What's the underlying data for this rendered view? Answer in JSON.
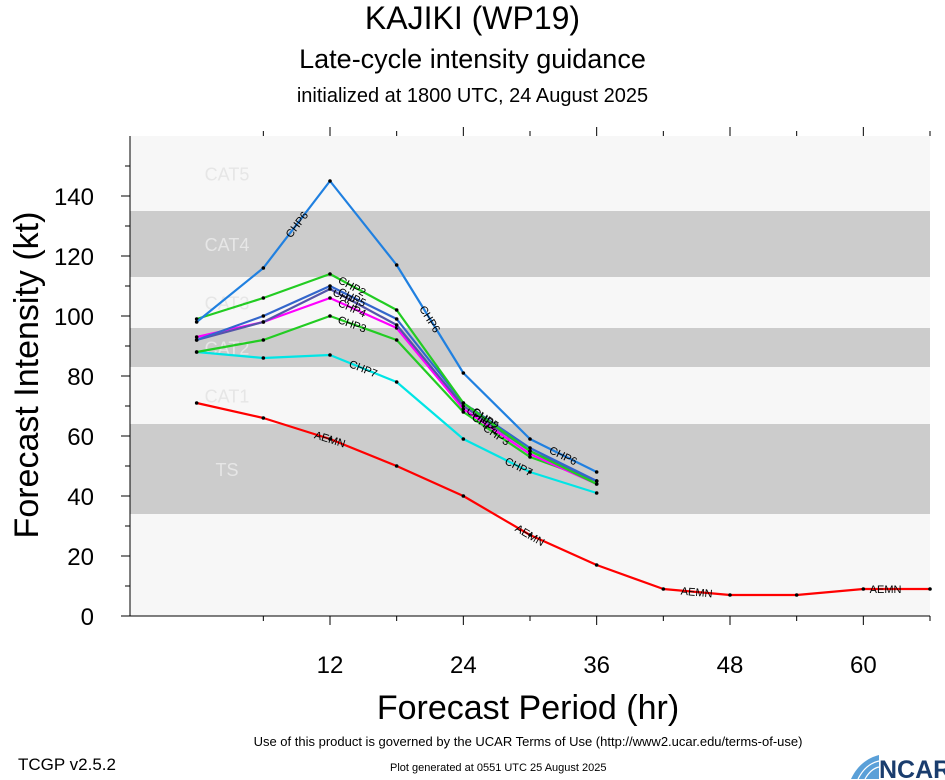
{
  "header": {
    "title": "KAJIKI (WP19)",
    "subtitle": "Late-cycle intensity guidance",
    "init": "initialized at 1800 UTC, 24 August 2025"
  },
  "chart_data": {
    "type": "line",
    "title": "KAJIKI (WP19)",
    "subtitle": "Late-cycle intensity guidance",
    "xlabel": "Forecast Period (hr)",
    "ylabel": "Forecast Intensity (kt)",
    "xlim": [
      -6,
      66
    ],
    "ylim": [
      0,
      160
    ],
    "xticks": [
      12,
      24,
      36,
      48,
      60
    ],
    "yticks": [
      0,
      20,
      40,
      60,
      80,
      100,
      120,
      140
    ],
    "grid": false,
    "category_bands": [
      {
        "label": "TS",
        "range": [
          34,
          64
        ],
        "shaded": true
      },
      {
        "label": "CAT1",
        "range": [
          64,
          83
        ],
        "shaded": false
      },
      {
        "label": "CAT2",
        "range": [
          83,
          96
        ],
        "shaded": true
      },
      {
        "label": "CAT3",
        "range": [
          96,
          113
        ],
        "shaded": false
      },
      {
        "label": "CAT4",
        "range": [
          113,
          135
        ],
        "shaded": true
      },
      {
        "label": "CAT5",
        "range": [
          135,
          160
        ],
        "shaded": false
      }
    ],
    "series": [
      {
        "name": "AEMN",
        "color": "#ff0000",
        "x": [
          0,
          6,
          12,
          18,
          24,
          30,
          36,
          42,
          48,
          54,
          60,
          66
        ],
        "values": [
          71,
          66,
          59,
          50,
          40,
          27,
          17,
          9,
          7,
          7,
          9,
          9
        ],
        "labels_at": [
          12,
          30,
          45,
          62
        ]
      },
      {
        "name": "CHP6",
        "color": "#2080e0",
        "x": [
          0,
          6,
          12,
          18,
          24,
          30,
          36
        ],
        "values": [
          98,
          116,
          145,
          117,
          81,
          59,
          48
        ],
        "labels_at": [
          9,
          21,
          33
        ]
      },
      {
        "name": "CHP2",
        "color": "#22cc22",
        "x": [
          0,
          6,
          12,
          18,
          24,
          30,
          36
        ],
        "values": [
          99,
          106,
          114,
          102,
          71,
          55,
          44
        ],
        "labels_at": [
          14,
          26
        ]
      },
      {
        "name": "CHP5",
        "color": "#3366cc",
        "x": [
          0,
          6,
          12,
          18,
          24,
          30,
          36
        ],
        "values": [
          92,
          100,
          110,
          99,
          71,
          56,
          45
        ],
        "labels_at": [
          14,
          26
        ]
      },
      {
        "name": "CHP1",
        "color": "#5555aa",
        "x": [
          0,
          6,
          12,
          18,
          24,
          30,
          36
        ],
        "values": [
          92,
          98,
          109,
          97,
          70,
          55,
          45
        ],
        "labels_at": [
          13.5,
          25.5
        ]
      },
      {
        "name": "CHP4",
        "color": "#ff00ff",
        "x": [
          0,
          6,
          12,
          18,
          24,
          30,
          36
        ],
        "values": [
          93,
          98,
          106,
          96,
          69,
          54,
          44
        ],
        "labels_at": [
          14,
          26
        ]
      },
      {
        "name": "CHP3",
        "color": "#22cc22",
        "x": [
          0,
          6,
          12,
          18,
          24,
          30,
          36
        ],
        "values": [
          88,
          92,
          100,
          92,
          68,
          53,
          45
        ],
        "labels_at": [
          14,
          27
        ]
      },
      {
        "name": "CHP7",
        "color": "#00e5e5",
        "x": [
          0,
          6,
          12,
          18,
          24,
          30,
          36
        ],
        "values": [
          88,
          86,
          87,
          78,
          59,
          48,
          41
        ],
        "labels_at": [
          15,
          29
        ]
      }
    ]
  },
  "footer": {
    "terms": "Use of this product is governed by the UCAR Terms of Use (http://www2.ucar.edu/terms-of-use)",
    "version": "TCGP v2.5.2",
    "generated": "Plot generated at 0551 UTC   25 August 2025",
    "logo_text": "NCAR"
  }
}
